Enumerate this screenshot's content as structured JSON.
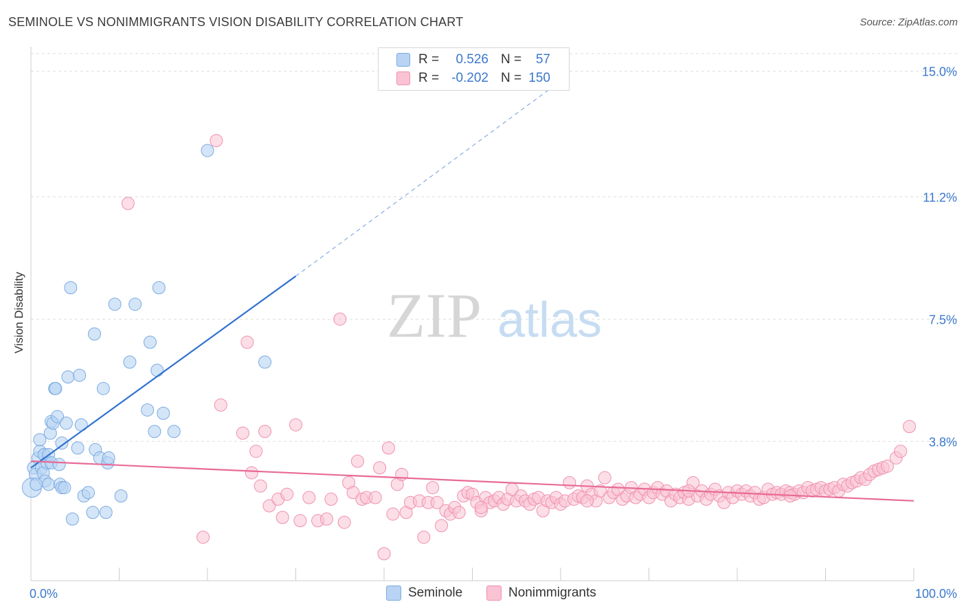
{
  "title": "SEMINOLE VS NONIMMIGRANTS VISION DISABILITY CORRELATION CHART",
  "source": "Source: ZipAtlas.com",
  "colors": {
    "seminole_fill": "#b8d3f3",
    "seminole_stroke": "#7aaae0",
    "seminole_line": "#2f72cf",
    "nonimm_fill": "#f9c3d4",
    "nonimm_stroke": "#ef90ae",
    "nonimm_line": "#e86a96",
    "tick_label": "#3a78cc",
    "grid": "#dddddd"
  },
  "watermark": {
    "zip": "ZIP",
    "atlas": "atlas"
  },
  "legend_top": {
    "rows": [
      {
        "r_label": "R =",
        "r_value": "0.526",
        "n_label": "N =",
        "n_value": "57"
      },
      {
        "r_label": "R =",
        "r_value": "-0.202",
        "n_label": "N =",
        "n_value": "150"
      }
    ]
  },
  "legend_bottom": {
    "items": [
      "Seminole",
      "Nonimmigrants"
    ]
  },
  "chart_data": {
    "type": "scatter",
    "title": "SEMINOLE VS NONIMMIGRANTS VISION DISABILITY CORRELATION CHART",
    "xlabel": "",
    "ylabel": "Vision Disability",
    "xlim": [
      0,
      100
    ],
    "ylim": [
      0,
      15.7
    ],
    "x_tick_labels": [
      "0.0%",
      "100.0%"
    ],
    "y_ticks": [
      3.8,
      7.5,
      11.2,
      15.0
    ],
    "y_tick_labels": [
      "3.8%",
      "7.5%",
      "11.2%",
      "15.0%"
    ],
    "grid": true,
    "legend_position": "top-center",
    "series": [
      {
        "name": "Seminole",
        "r": 0.526,
        "n": 57,
        "trend": {
          "x": [
            0,
            30
          ],
          "y": [
            3.0,
            8.8
          ],
          "dashed_to": [
            61,
            14.9
          ]
        },
        "points": [
          [
            0.3,
            3.0
          ],
          [
            0.5,
            2.8
          ],
          [
            0.8,
            3.3
          ],
          [
            1.0,
            3.5
          ],
          [
            1.2,
            3.0
          ],
          [
            1.0,
            3.85
          ],
          [
            1.4,
            2.85
          ],
          [
            1.5,
            3.4
          ],
          [
            1.6,
            2.6
          ],
          [
            1.5,
            3.4
          ],
          [
            1.8,
            3.15
          ],
          [
            2.0,
            3.4
          ],
          [
            2.3,
            3.15
          ],
          [
            2.0,
            2.5
          ],
          [
            2.2,
            4.05
          ],
          [
            2.3,
            4.4
          ],
          [
            2.5,
            4.35
          ],
          [
            2.7,
            5.4
          ],
          [
            2.8,
            5.4
          ],
          [
            3.0,
            4.55
          ],
          [
            3.2,
            3.1
          ],
          [
            3.3,
            2.5
          ],
          [
            3.5,
            2.4
          ],
          [
            3.5,
            3.75
          ],
          [
            3.8,
            2.4
          ],
          [
            4.0,
            4.35
          ],
          [
            4.2,
            5.75
          ],
          [
            4.5,
            8.45
          ],
          [
            4.7,
            1.45
          ],
          [
            5.3,
            3.6
          ],
          [
            5.5,
            5.8
          ],
          [
            5.7,
            4.3
          ],
          [
            6.0,
            2.15
          ],
          [
            6.5,
            2.25
          ],
          [
            7.0,
            1.65
          ],
          [
            7.2,
            7.05
          ],
          [
            7.3,
            3.55
          ],
          [
            7.8,
            3.3
          ],
          [
            8.2,
            5.4
          ],
          [
            8.5,
            1.65
          ],
          [
            8.7,
            3.15
          ],
          [
            8.8,
            3.3
          ],
          [
            9.5,
            7.95
          ],
          [
            10.2,
            2.15
          ],
          [
            11.2,
            6.2
          ],
          [
            11.8,
            7.95
          ],
          [
            13.2,
            4.75
          ],
          [
            13.5,
            6.8
          ],
          [
            14.0,
            4.1
          ],
          [
            14.3,
            5.95
          ],
          [
            14.5,
            8.45
          ],
          [
            15.0,
            4.65
          ],
          [
            16.2,
            4.1
          ],
          [
            20.0,
            12.6
          ],
          [
            26.5,
            6.2
          ],
          [
            0.1,
            2.4
          ],
          [
            0.6,
            2.5
          ]
        ]
      },
      {
        "name": "Nonimmigrants",
        "r": -0.202,
        "n": 150,
        "trend": {
          "x": [
            0,
            100
          ],
          "y": [
            3.2,
            2.0
          ]
        },
        "points": [
          [
            11.0,
            11.0
          ],
          [
            21.0,
            12.9
          ],
          [
            19.5,
            0.9
          ],
          [
            21.5,
            4.9
          ],
          [
            24.0,
            4.05
          ],
          [
            24.5,
            6.8
          ],
          [
            25.0,
            2.85
          ],
          [
            25.5,
            3.5
          ],
          [
            26.0,
            2.45
          ],
          [
            26.5,
            4.1
          ],
          [
            27.0,
            1.85
          ],
          [
            28.0,
            2.05
          ],
          [
            28.5,
            1.5
          ],
          [
            29.0,
            2.2
          ],
          [
            30.0,
            4.3
          ],
          [
            30.5,
            1.4
          ],
          [
            31.5,
            2.1
          ],
          [
            32.5,
            1.4
          ],
          [
            33.5,
            1.45
          ],
          [
            34.0,
            2.05
          ],
          [
            35.0,
            7.5
          ],
          [
            35.5,
            1.35
          ],
          [
            36.0,
            2.55
          ],
          [
            36.5,
            2.25
          ],
          [
            37.0,
            3.2
          ],
          [
            37.5,
            2.05
          ],
          [
            38.0,
            2.1
          ],
          [
            39.0,
            2.1
          ],
          [
            39.5,
            3.0
          ],
          [
            40.0,
            0.4
          ],
          [
            40.5,
            3.6
          ],
          [
            41.0,
            1.6
          ],
          [
            41.5,
            2.5
          ],
          [
            42.0,
            2.8
          ],
          [
            42.5,
            1.65
          ],
          [
            43.0,
            1.95
          ],
          [
            44.0,
            2.0
          ],
          [
            44.5,
            0.9
          ],
          [
            45.0,
            1.95
          ],
          [
            45.5,
            2.4
          ],
          [
            46.0,
            1.95
          ],
          [
            46.5,
            1.25
          ],
          [
            47.0,
            1.7
          ],
          [
            47.5,
            1.6
          ],
          [
            48.0,
            1.8
          ],
          [
            48.5,
            1.65
          ],
          [
            49.0,
            2.15
          ],
          [
            49.5,
            2.25
          ],
          [
            50.0,
            2.2
          ],
          [
            50.5,
            1.95
          ],
          [
            51.0,
            1.7
          ],
          [
            51.5,
            2.1
          ],
          [
            52.0,
            1.95
          ],
          [
            52.5,
            2.0
          ],
          [
            53.0,
            2.1
          ],
          [
            53.5,
            1.9
          ],
          [
            54.0,
            2.05
          ],
          [
            54.5,
            2.35
          ],
          [
            55.0,
            2.0
          ],
          [
            55.5,
            2.15
          ],
          [
            56.0,
            2.0
          ],
          [
            56.5,
            1.9
          ],
          [
            57.0,
            2.05
          ],
          [
            57.5,
            2.1
          ],
          [
            58.0,
            1.7
          ],
          [
            58.5,
            2.0
          ],
          [
            59.0,
            1.95
          ],
          [
            59.5,
            2.1
          ],
          [
            60.0,
            1.9
          ],
          [
            60.5,
            2.0
          ],
          [
            61.0,
            2.55
          ],
          [
            61.5,
            2.05
          ],
          [
            62.0,
            2.15
          ],
          [
            62.5,
            2.1
          ],
          [
            63.0,
            2.45
          ],
          [
            63.5,
            2.2
          ],
          [
            64.0,
            2.0
          ],
          [
            64.5,
            2.3
          ],
          [
            65.0,
            2.7
          ],
          [
            65.5,
            2.1
          ],
          [
            66.0,
            2.25
          ],
          [
            66.5,
            2.35
          ],
          [
            67.0,
            2.05
          ],
          [
            67.5,
            2.15
          ],
          [
            68.0,
            2.4
          ],
          [
            68.5,
            2.1
          ],
          [
            69.0,
            2.2
          ],
          [
            69.5,
            2.35
          ],
          [
            70.0,
            2.1
          ],
          [
            70.5,
            2.25
          ],
          [
            71.0,
            2.4
          ],
          [
            71.5,
            2.2
          ],
          [
            72.0,
            2.3
          ],
          [
            72.5,
            2.0
          ],
          [
            73.0,
            2.2
          ],
          [
            73.5,
            2.1
          ],
          [
            74.0,
            2.25
          ],
          [
            74.5,
            2.05
          ],
          [
            75.0,
            2.55
          ],
          [
            75.5,
            2.15
          ],
          [
            76.0,
            2.3
          ],
          [
            76.5,
            2.05
          ],
          [
            77.0,
            2.2
          ],
          [
            77.5,
            2.35
          ],
          [
            78.0,
            2.15
          ],
          [
            78.5,
            1.95
          ],
          [
            79.0,
            2.25
          ],
          [
            79.5,
            2.1
          ],
          [
            80.0,
            2.3
          ],
          [
            80.5,
            2.2
          ],
          [
            81.0,
            2.3
          ],
          [
            81.5,
            2.15
          ],
          [
            82.0,
            2.25
          ],
          [
            82.5,
            2.05
          ],
          [
            83.0,
            2.1
          ],
          [
            83.5,
            2.35
          ],
          [
            84.0,
            2.2
          ],
          [
            84.5,
            2.25
          ],
          [
            85.0,
            2.2
          ],
          [
            85.5,
            2.3
          ],
          [
            86.0,
            2.25
          ],
          [
            86.5,
            2.2
          ],
          [
            87.0,
            2.3
          ],
          [
            87.5,
            2.25
          ],
          [
            88.0,
            2.4
          ],
          [
            88.5,
            2.3
          ],
          [
            89.0,
            2.35
          ],
          [
            89.5,
            2.4
          ],
          [
            90.0,
            2.3
          ],
          [
            90.5,
            2.35
          ],
          [
            91.0,
            2.4
          ],
          [
            91.5,
            2.3
          ],
          [
            92.0,
            2.5
          ],
          [
            92.5,
            2.45
          ],
          [
            93.0,
            2.55
          ],
          [
            93.5,
            2.6
          ],
          [
            94.0,
            2.7
          ],
          [
            94.5,
            2.65
          ],
          [
            95.0,
            2.8
          ],
          [
            95.5,
            2.9
          ],
          [
            96.0,
            2.95
          ],
          [
            96.5,
            3.0
          ],
          [
            97.0,
            3.05
          ],
          [
            98.0,
            3.3
          ],
          [
            98.5,
            3.5
          ],
          [
            99.5,
            4.25
          ],
          [
            51.0,
            1.8
          ],
          [
            63.0,
            2.0
          ],
          [
            74.5,
            2.3
          ],
          [
            86.0,
            2.15
          ]
        ]
      }
    ]
  }
}
